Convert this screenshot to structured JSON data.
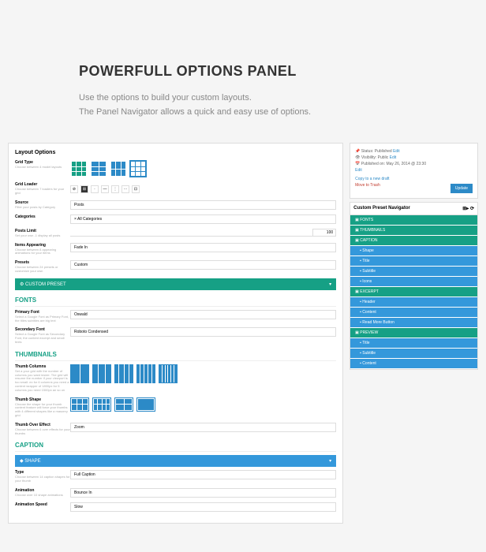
{
  "hero": {
    "title": "POWERFULL OPTIONS PANEL",
    "line1": "Use the options to build your custom layouts.",
    "line2": "The Panel Navigator allows a quick and easy use of options."
  },
  "layout": {
    "title": "Layout Options",
    "gridType": {
      "label": "Grid Type",
      "desc": "Choose between 4 model layouts"
    },
    "gridLoader": {
      "label": "Grid Loader",
      "desc": "Choose between 7 loaders for your grid"
    },
    "source": {
      "label": "Source",
      "desc": "Filter your posts by Category",
      "value": "Posts"
    },
    "categories": {
      "label": "Categories",
      "value": "× All Categories"
    },
    "postsLimit": {
      "label": "Posts Limit",
      "desc": "Set your own -1 display all posts",
      "value": "100"
    },
    "itemsAppearing": {
      "label": "Items Appearing",
      "desc": "Choose between 8 appearing animations for your items",
      "value": "Fade In"
    },
    "presets": {
      "label": "Presets",
      "desc": "Choose between 24 presets or customize your own",
      "value": "Custom"
    },
    "customPreset": "CUSTOM PRESET"
  },
  "fonts": {
    "title": "FONTS",
    "primary": {
      "label": "Primary Font",
      "desc": "Select a Google Font as Primary Font, the titles subtitles are big text",
      "value": "Oswald"
    },
    "secondary": {
      "label": "Secondary Font",
      "desc": "Select a Google Font as Secondary Font, the content excerpt and small texts",
      "value": "Roboto Condensed"
    }
  },
  "thumbs": {
    "title": "THUMBNAILS",
    "columns": {
      "label": "Thumb Columns",
      "desc": "Set a your grid with the number of columns you want inside. The grid will resume the number if your viewport is too small: ex for 6 columns you need a content wrapper of 1800px for 5 columns you need 1500px an so on"
    },
    "shape": {
      "label": "Thumb Shape",
      "desc": "Choose the shape for your thumb content feature will force your thumbs with 4 different shapes like a masonry grid"
    },
    "overEffect": {
      "label": "Thumb Over Effect",
      "desc": "Choose between 6 over effects for your thumbs",
      "value": "Zoom"
    }
  },
  "caption": {
    "title": "CAPTION",
    "shape": "SHAPE",
    "type": {
      "label": "Type",
      "desc": "Choose between 14 caption shapes for your thumb",
      "value": "Full Caption"
    },
    "animation": {
      "label": "Animation",
      "desc": "Choose over 10 shape animations",
      "value": "Bounce In"
    },
    "speed": {
      "label": "Animation Speed",
      "value": "Slow"
    }
  },
  "publish": {
    "status": "Status: Published",
    "visibility": "Visibility: Public",
    "date": "Published on: May 26, 2014 @ 23:30",
    "edit": "Edit",
    "copyDraft": "Copy to a new draft",
    "trash": "Move to Trash",
    "update": "Update"
  },
  "nav": {
    "title": "Custom Preset Navigator",
    "items": [
      {
        "label": "FONTS",
        "sub": false
      },
      {
        "label": "THUMBNAILS",
        "sub": false
      },
      {
        "label": "CAPTION",
        "sub": false
      },
      {
        "label": "Shape",
        "sub": true
      },
      {
        "label": "Title",
        "sub": true
      },
      {
        "label": "Subtitle",
        "sub": true
      },
      {
        "label": "Icons",
        "sub": true
      },
      {
        "label": "EXCERPT",
        "sub": false
      },
      {
        "label": "Header",
        "sub": true
      },
      {
        "label": "Content",
        "sub": true
      },
      {
        "label": "Read More Button",
        "sub": true
      },
      {
        "label": "PREVIEW",
        "sub": false
      },
      {
        "label": "Title",
        "sub": true
      },
      {
        "label": "Subtitle",
        "sub": true
      },
      {
        "label": "Content",
        "sub": true
      }
    ]
  },
  "colors": {
    "teal": "#16a085",
    "blue": "#3498db",
    "btnBlue": "#2c8ac7"
  }
}
